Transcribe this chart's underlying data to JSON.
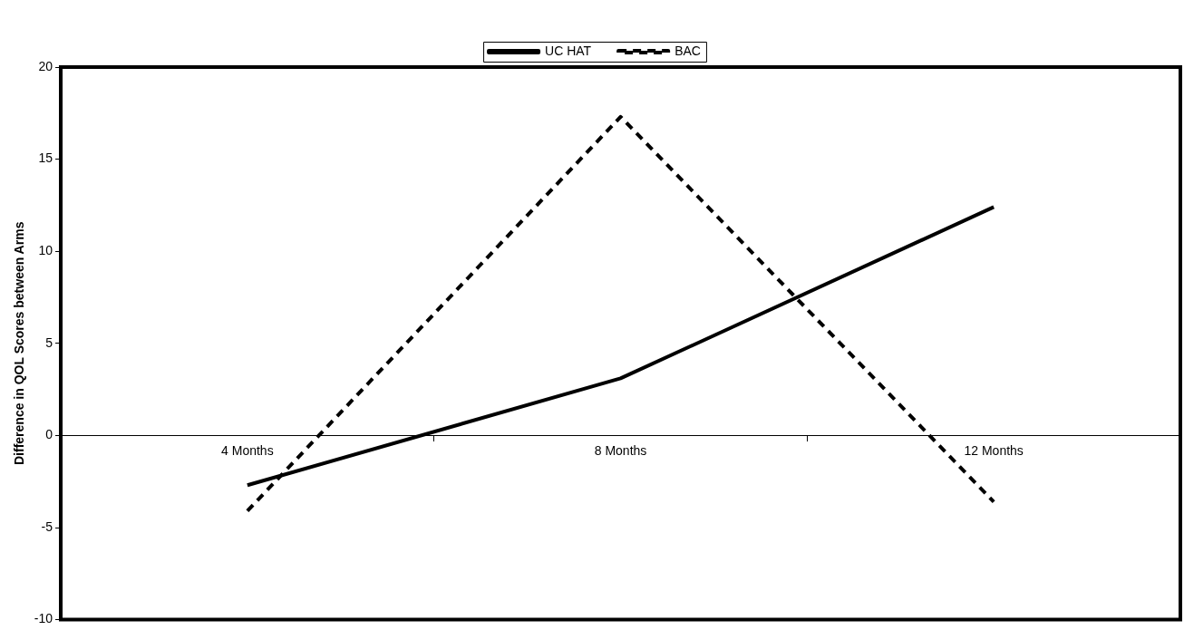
{
  "chart_data": {
    "type": "line",
    "ylabel": "Difference in QOL Scores between Arms",
    "categories": [
      "4 Months",
      "8 Months",
      "12 Months"
    ],
    "series": [
      {
        "name": "UC HAT",
        "color": "#000000",
        "values": [
          -2.7,
          3.1,
          12.4
        ],
        "line_style": "solid"
      },
      {
        "name": "BAC",
        "color": "#000000",
        "values": [
          -4.1,
          17.3,
          -3.6
        ],
        "line_style": "dashed"
      }
    ],
    "ylim": [
      -10,
      20
    ],
    "yticks": [
      -10,
      -5,
      0,
      5,
      10,
      15,
      20
    ],
    "grid": false,
    "legend": "top",
    "marker": "none"
  }
}
